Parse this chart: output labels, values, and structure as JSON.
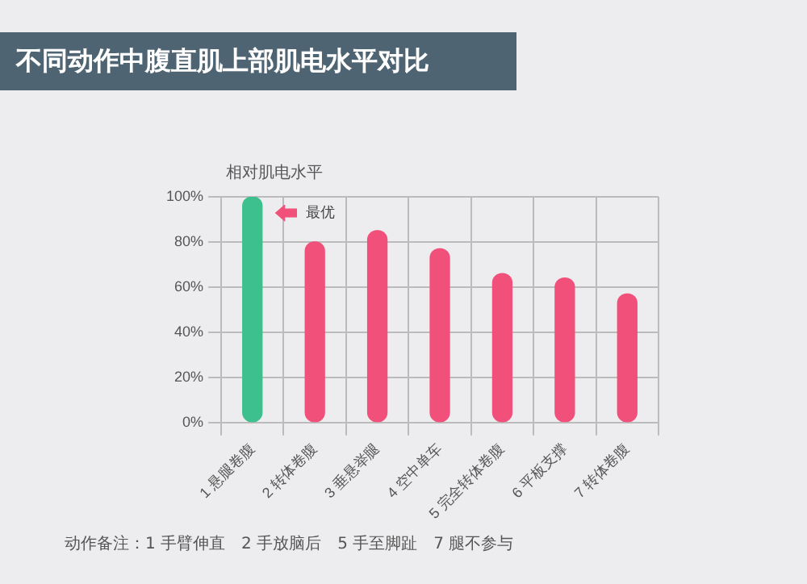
{
  "chart_data": {
    "type": "bar",
    "title": "不同动作中腹直肌上部肌电水平对比",
    "ylabel": "相对肌电水平",
    "categories": [
      "1 悬腿卷腹",
      "2 转体卷腹",
      "3 垂悬举腿",
      "4 空中单车",
      "5 完全转体卷腹",
      "6 平板支撑",
      "7 转体卷腹"
    ],
    "values": [
      100,
      80,
      85,
      77,
      66,
      64,
      57
    ],
    "colors": [
      "#3dbf8e",
      "#f0507a",
      "#f0507a",
      "#f0507a",
      "#f0507a",
      "#f0507a",
      "#f0507a"
    ],
    "ylim": [
      0,
      100
    ],
    "yticks": [
      {
        "value": 0,
        "label": "0%"
      },
      {
        "value": 20,
        "label": "20%"
      },
      {
        "value": 40,
        "label": "40%"
      },
      {
        "value": 60,
        "label": "60%"
      },
      {
        "value": 80,
        "label": "80%"
      },
      {
        "value": 100,
        "label": "100%"
      }
    ],
    "grid": true,
    "legend": false,
    "annotations": [
      "最优",
      "动作备注：1 手臂伸直　2 手放脑后　5 手至脚趾　7 腿不参与"
    ]
  }
}
